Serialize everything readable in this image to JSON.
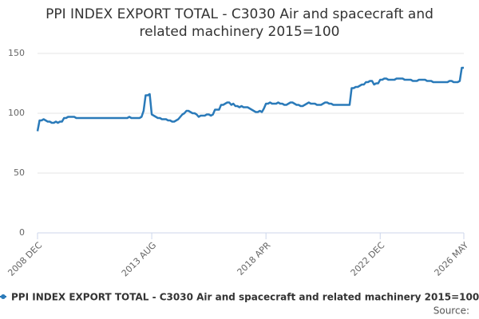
{
  "chart_data": {
    "type": "line",
    "title": "PPI INDEX EXPORT TOTAL - C3030 Air and spacecraft and related machinery 2015=100",
    "source": "Source:",
    "categories": [
      "2008 DEC",
      null,
      null,
      null,
      null,
      null,
      null,
      null,
      null,
      null,
      null,
      null,
      null,
      null,
      null,
      null,
      null,
      null,
      null,
      null,
      null,
      null,
      null,
      null,
      null,
      null,
      null,
      null,
      null,
      null,
      null,
      null,
      null,
      null,
      null,
      null,
      null,
      null,
      null,
      null,
      null,
      null,
      null,
      null,
      null,
      null,
      null,
      null,
      null,
      null,
      null,
      null,
      null,
      null,
      null,
      null,
      "2013 AUG",
      null,
      null,
      null,
      null,
      null,
      null,
      null,
      null,
      null,
      null,
      null,
      null,
      null,
      null,
      null,
      null,
      null,
      null,
      null,
      null,
      null,
      null,
      null,
      null,
      null,
      null,
      null,
      null,
      null,
      null,
      null,
      null,
      null,
      null,
      null,
      null,
      null,
      null,
      null,
      null,
      null,
      null,
      null,
      null,
      null,
      null,
      null,
      null,
      null,
      null,
      null,
      null,
      null,
      null,
      null,
      "2018 APR",
      null,
      null,
      null,
      null,
      null,
      null,
      null,
      null,
      null,
      null,
      null,
      null,
      null,
      null,
      null,
      null,
      null,
      null,
      null,
      null,
      null,
      null,
      null,
      null,
      null,
      null,
      null,
      null,
      null,
      null,
      null,
      null,
      null,
      null,
      null,
      null,
      null,
      null,
      null,
      null,
      null,
      null,
      null,
      null,
      null,
      null,
      null,
      null,
      null,
      null,
      null,
      null,
      null,
      null,
      null,
      "2022 DEC",
      null,
      null,
      null,
      null,
      null,
      null,
      null,
      null,
      null,
      null,
      null,
      null,
      null,
      null,
      null,
      null,
      null,
      null,
      null,
      null,
      null,
      null,
      null,
      null,
      null,
      null,
      null,
      null,
      null,
      null,
      null,
      null,
      null,
      null,
      null,
      null,
      null,
      null,
      null,
      null,
      "2026 MAY"
    ],
    "series": [
      {
        "name": "PPI INDEX EXPORT TOTAL - C3030 Air and spacecraft and related machinery 2015=100",
        "color": "#2a7ab9",
        "values": [
          85,
          94,
          94,
          95,
          94,
          93,
          93,
          92,
          92,
          93,
          92,
          93,
          93,
          96,
          96,
          97,
          97,
          97,
          97,
          96,
          96,
          96,
          96,
          96,
          96,
          96,
          96,
          96,
          96,
          96,
          96,
          96,
          96,
          96,
          96,
          96,
          96,
          96,
          96,
          96,
          96,
          96,
          96,
          96,
          96,
          97,
          96,
          96,
          96,
          96,
          96,
          97,
          102,
          115,
          115,
          116,
          99,
          98,
          97,
          96,
          96,
          95,
          95,
          95,
          94,
          94,
          93,
          93,
          94,
          95,
          97,
          99,
          100,
          102,
          102,
          101,
          100,
          100,
          99,
          97,
          98,
          98,
          98,
          99,
          99,
          98,
          99,
          103,
          103,
          103,
          107,
          107,
          108,
          109,
          109,
          107,
          108,
          106,
          106,
          105,
          106,
          105,
          105,
          105,
          104,
          103,
          102,
          101,
          101,
          102,
          101,
          104,
          108,
          108,
          109,
          108,
          108,
          108,
          109,
          108,
          108,
          107,
          107,
          108,
          109,
          109,
          108,
          107,
          107,
          106,
          106,
          107,
          108,
          109,
          108,
          108,
          108,
          107,
          107,
          107,
          108,
          109,
          109,
          108,
          108,
          107,
          107,
          107,
          107,
          107,
          107,
          107,
          107,
          107,
          121,
          121,
          122,
          122,
          123,
          124,
          124,
          126,
          126,
          127,
          127,
          124,
          125,
          125,
          128,
          128,
          129,
          129,
          128,
          128,
          128,
          128,
          129,
          129,
          129,
          129,
          128,
          128,
          128,
          128,
          127,
          127,
          127,
          128,
          128,
          128,
          128,
          127,
          127,
          127,
          126,
          126,
          126,
          126,
          126,
          126,
          126,
          126,
          127,
          127,
          126,
          126,
          126,
          127,
          138,
          138
        ]
      }
    ],
    "ylim": [
      0,
      150
    ],
    "yticks": [
      0,
      50,
      100,
      150
    ],
    "grid": true
  }
}
